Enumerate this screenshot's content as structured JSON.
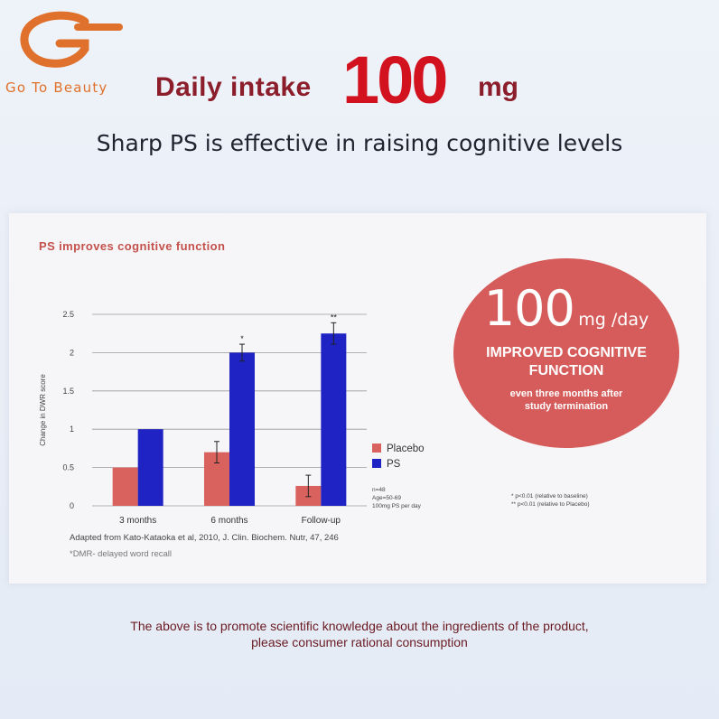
{
  "brand": {
    "logo_text": "Go To Beauty",
    "logo_color": "#e0712c"
  },
  "headline": {
    "prefix": "Daily intake",
    "amount": "100",
    "unit": "mg"
  },
  "subtitle": "Sharp PS is effective in raising cognitive levels",
  "card": {
    "title": "PS improves cognitive function",
    "circle": {
      "amount": "100",
      "unit": "mg /day",
      "line1": "IMPROVED COGNITIVE",
      "line2": "FUNCTION",
      "line3": "even three months after",
      "line4": "study termination",
      "color": "#d55c5b"
    },
    "sample_notes": [
      "n=48",
      "Age=50-69",
      "100mg PS per day"
    ],
    "significance_notes": [
      "*  p<0.01 (relative to baseline)",
      "** p<0.01 (relative to Placebo)"
    ],
    "source": "Adapted from Kato-Kataoka et al, 2010, J. Clin. Biochem. Nutr, 47, 246",
    "footnote": "*DMR- delayed word recall"
  },
  "chart_data": {
    "type": "bar",
    "categories": [
      "3 months",
      "6 months",
      "Follow-up"
    ],
    "series": [
      {
        "name": "Placebo",
        "values": [
          0.5,
          0.7,
          0.26
        ],
        "errors": [
          0,
          0.14,
          0.14
        ],
        "color": "#d9625f",
        "markers": [
          "",
          "",
          ""
        ]
      },
      {
        "name": "PS",
        "values": [
          1.0,
          2.0,
          2.25
        ],
        "errors": [
          0,
          0.11,
          0.14
        ],
        "color": "#1f23c4",
        "markers": [
          "",
          "*",
          "**"
        ]
      }
    ],
    "ylabel": "Change in DWR score",
    "xlabel": "",
    "ylim": [
      0,
      2.5
    ],
    "yticks": [
      "0",
      "0.5",
      "1",
      "1.5",
      "2",
      "2.5"
    ],
    "grid": true,
    "legend_position": "right"
  },
  "disclaimer": {
    "line1": "The above is to promote scientific knowledge about the ingredients of the product,",
    "line2": "please consumer rational consumption"
  }
}
